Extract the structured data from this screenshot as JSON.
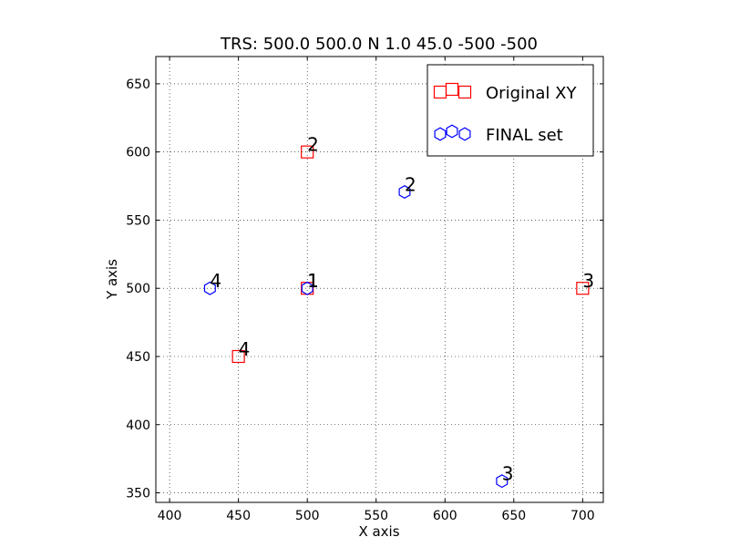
{
  "chart_data": {
    "type": "scatter",
    "title": "TRS: 500.0 500.0 N 1.0 45.0 -500 -500",
    "xlabel": "X axis",
    "ylabel": "Y axis",
    "xlim": [
      390,
      715
    ],
    "ylim": [
      343,
      670
    ],
    "xticks": [
      400,
      450,
      500,
      550,
      600,
      650,
      700
    ],
    "yticks": [
      350,
      400,
      450,
      500,
      550,
      600,
      650
    ],
    "grid": true,
    "legend_position": "top-right",
    "series": [
      {
        "name": "Original XY",
        "marker": "square",
        "color": "#ff0000",
        "points": [
          {
            "x": 500,
            "y": 500,
            "label": "1"
          },
          {
            "x": 500,
            "y": 600,
            "label": "2"
          },
          {
            "x": 700,
            "y": 500,
            "label": "3"
          },
          {
            "x": 450,
            "y": 450,
            "label": "4"
          }
        ]
      },
      {
        "name": "FINAL set",
        "marker": "hexagon",
        "color": "#0000ff",
        "points": [
          {
            "x": 500.0,
            "y": 500.0,
            "label": "1"
          },
          {
            "x": 570.7,
            "y": 570.7,
            "label": "2"
          },
          {
            "x": 641.4,
            "y": 358.6,
            "label": "3"
          },
          {
            "x": 429.3,
            "y": 500.0,
            "label": "4"
          }
        ]
      }
    ]
  }
}
